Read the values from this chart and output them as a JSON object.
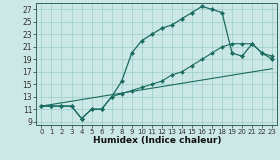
{
  "xlabel": "Humidex (Indice chaleur)",
  "bg_color": "#cce8e6",
  "grid_color": "#99ccc9",
  "line_color": "#1a6b60",
  "xlim": [
    -0.5,
    23.5
  ],
  "ylim": [
    8.5,
    28.0
  ],
  "yticks": [
    9,
    11,
    13,
    15,
    17,
    19,
    21,
    23,
    25,
    27
  ],
  "xticks": [
    0,
    1,
    2,
    3,
    4,
    5,
    6,
    7,
    8,
    9,
    10,
    11,
    12,
    13,
    14,
    15,
    16,
    17,
    18,
    19,
    20,
    21,
    22,
    23
  ],
  "curve1_x": [
    0,
    1,
    2,
    3,
    4,
    5,
    6,
    7,
    8,
    9,
    10,
    11,
    12,
    13,
    14,
    15,
    16,
    17,
    18,
    19,
    20,
    21,
    22,
    23
  ],
  "curve1_y": [
    11.5,
    11.5,
    11.5,
    11.5,
    9.5,
    11.0,
    11.0,
    13.0,
    15.5,
    20.0,
    22.0,
    23.0,
    24.0,
    24.5,
    25.5,
    26.5,
    27.5,
    27.0,
    26.5,
    20.0,
    19.5,
    21.5,
    20.0,
    19.0
  ],
  "curve2_x": [
    0,
    1,
    2,
    3,
    4,
    5,
    6,
    7,
    8,
    9,
    10,
    11,
    12,
    13,
    14,
    15,
    16,
    17,
    18,
    19,
    20,
    21,
    22,
    23
  ],
  "curve2_y": [
    11.5,
    11.5,
    11.5,
    11.5,
    9.5,
    11.0,
    11.0,
    13.0,
    13.5,
    14.0,
    14.5,
    15.0,
    15.5,
    16.5,
    17.0,
    18.0,
    19.0,
    20.0,
    21.0,
    21.5,
    21.5,
    21.5,
    20.0,
    19.5
  ],
  "line3_x": [
    0,
    23
  ],
  "line3_y": [
    11.5,
    17.5
  ]
}
